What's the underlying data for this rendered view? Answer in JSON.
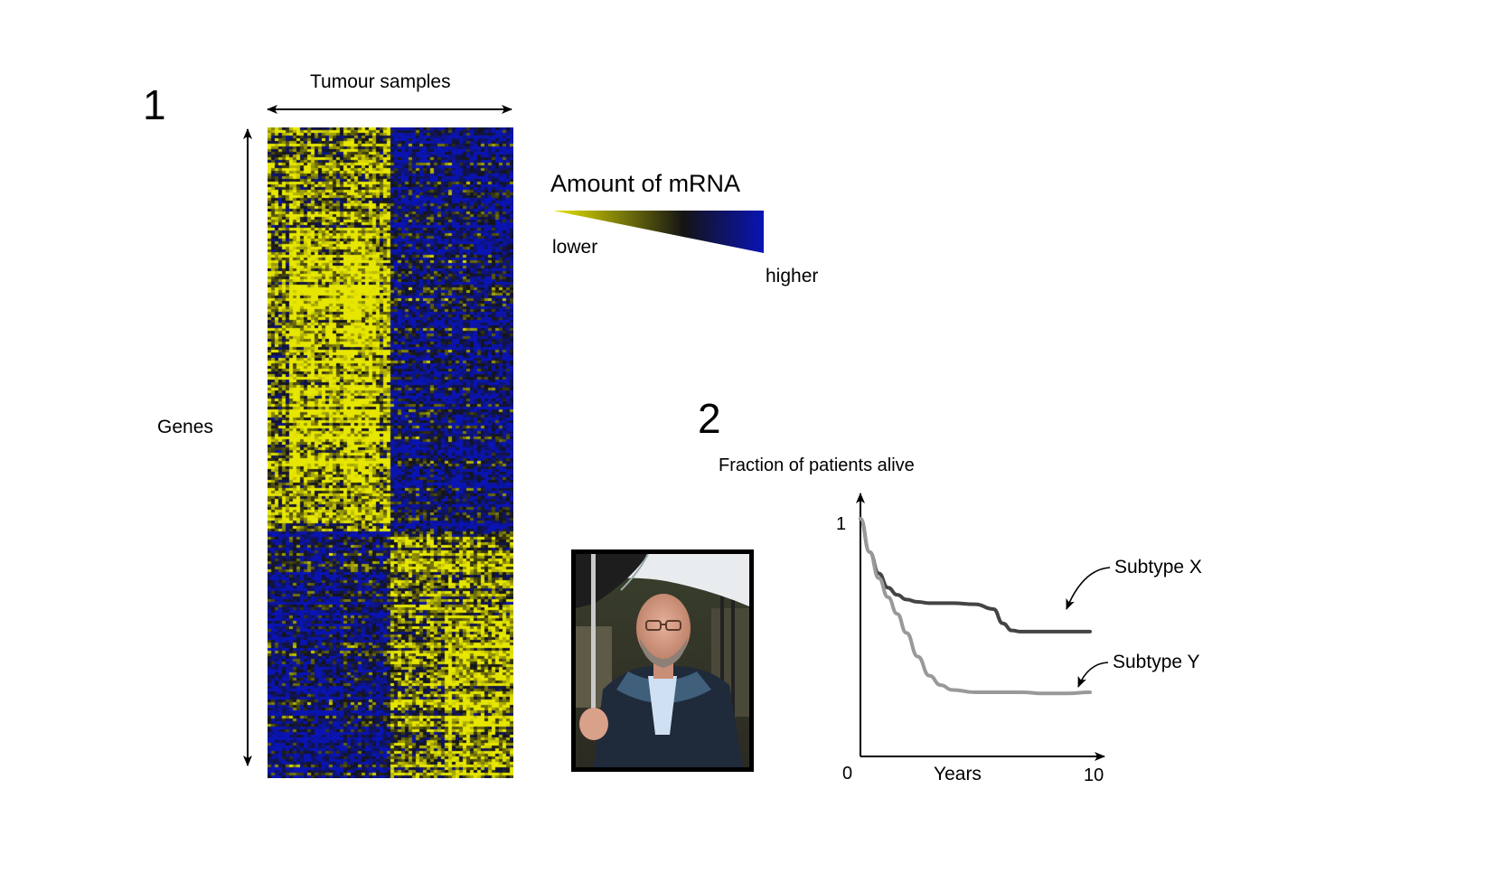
{
  "panel1": {
    "number": "1",
    "x_axis_label": "Tumour samples",
    "y_axis_label": "Genes",
    "heatmap_colors": {
      "low": "#e6e600",
      "mid": "#141414",
      "high": "#0a14b4"
    },
    "legend": {
      "title": "Amount of mRNA",
      "low_label": "lower",
      "high_label": "higher",
      "gradient": [
        "#e6e600",
        "#141414",
        "#0a14b4"
      ]
    }
  },
  "photo": {
    "subject": "portrait-photo"
  },
  "panel2": {
    "number": "2",
    "chart_data": {
      "type": "line",
      "title": "",
      "ylabel": "Fraction of patients alive",
      "xlabel": "Years",
      "x_ticks": [
        "0",
        "10"
      ],
      "y_ticks": [
        "1"
      ],
      "xlim": [
        0,
        10
      ],
      "ylim": [
        0,
        1
      ],
      "grid": false,
      "series": [
        {
          "name": "Subtype X",
          "color": "#444444",
          "x": [
            0,
            0.4,
            0.8,
            1.2,
            1.6,
            2.0,
            2.5,
            3.0,
            4.0,
            5.0,
            5.8,
            6.2,
            6.6,
            7.0,
            7.5,
            8.0,
            9.0,
            10.0
          ],
          "y": [
            1.0,
            0.86,
            0.77,
            0.71,
            0.68,
            0.66,
            0.65,
            0.645,
            0.645,
            0.64,
            0.62,
            0.56,
            0.53,
            0.525,
            0.525,
            0.525,
            0.525,
            0.525
          ]
        },
        {
          "name": "Subtype Y",
          "color": "#999999",
          "x": [
            0,
            0.4,
            0.8,
            1.2,
            1.6,
            2.0,
            2.5,
            3.0,
            3.5,
            4.0,
            5.0,
            6.0,
            7.0,
            8.0,
            9.0,
            10.0
          ],
          "y": [
            1.0,
            0.86,
            0.75,
            0.67,
            0.6,
            0.52,
            0.42,
            0.34,
            0.3,
            0.28,
            0.27,
            0.27,
            0.27,
            0.265,
            0.265,
            0.27
          ]
        }
      ]
    }
  }
}
